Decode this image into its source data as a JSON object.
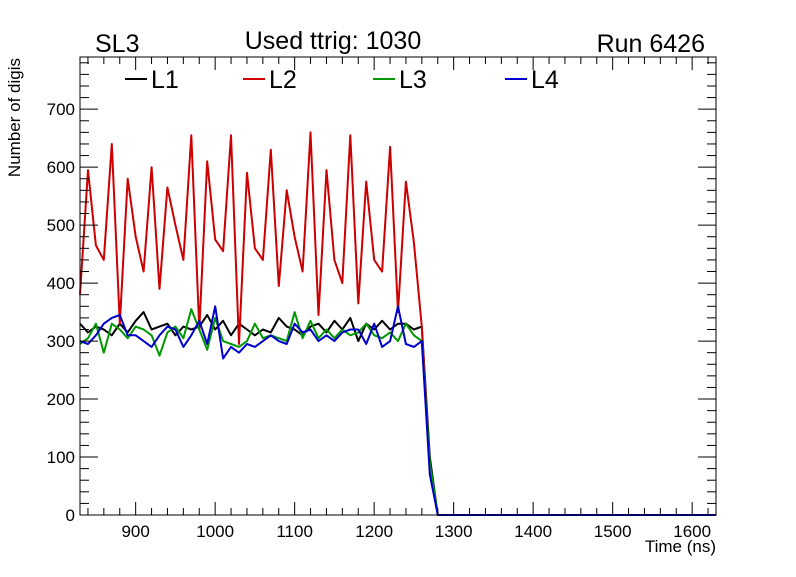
{
  "header": {
    "left": "SL3",
    "center": "Used ttrig: 1030",
    "right": "Run 6426"
  },
  "colors": {
    "L1": "#000000",
    "L2": "#cc0000",
    "L3": "#009900",
    "L4": "#0000cc",
    "frame": "#000000",
    "background": "#ffffff"
  },
  "chart_data": {
    "type": "line",
    "title": "Used ttrig: 1030",
    "xlabel": "Time (ns)",
    "ylabel": "Number of digis",
    "xlim": [
      830,
      1630
    ],
    "ylim": [
      0,
      790
    ],
    "xticks": [
      900,
      1000,
      1100,
      1200,
      1300,
      1400,
      1500,
      1600
    ],
    "yticks": [
      0,
      100,
      200,
      300,
      400,
      500,
      600,
      700
    ],
    "grid": false,
    "legend_position": "top",
    "x": [
      830,
      840,
      850,
      860,
      870,
      880,
      890,
      900,
      910,
      920,
      930,
      940,
      950,
      960,
      970,
      980,
      990,
      1000,
      1010,
      1020,
      1030,
      1040,
      1050,
      1060,
      1070,
      1080,
      1090,
      1100,
      1110,
      1120,
      1130,
      1140,
      1150,
      1160,
      1170,
      1180,
      1190,
      1200,
      1210,
      1220,
      1230,
      1240,
      1250,
      1260,
      1270,
      1280,
      1290,
      1300,
      1310,
      1320,
      1330,
      1340,
      1350,
      1360,
      1370,
      1380,
      1390,
      1400,
      1410,
      1420,
      1430,
      1440,
      1450,
      1460,
      1470,
      1480,
      1490,
      1500,
      1510,
      1520,
      1530,
      1540,
      1550,
      1560,
      1570,
      1580,
      1590,
      1600,
      1610,
      1620,
      1630
    ],
    "series": [
      {
        "name": "L1",
        "values": [
          330,
          315,
          325,
          320,
          310,
          330,
          315,
          335,
          350,
          320,
          325,
          330,
          310,
          325,
          320,
          325,
          345,
          320,
          335,
          310,
          330,
          320,
          310,
          320,
          315,
          340,
          325,
          320,
          310,
          325,
          330,
          315,
          335,
          320,
          340,
          300,
          330,
          320,
          335,
          320,
          330,
          330,
          320,
          325,
          100,
          0,
          0,
          0,
          0,
          0,
          0,
          0,
          0,
          0,
          0,
          0,
          0,
          0,
          0,
          0,
          0,
          0,
          0,
          0,
          0,
          0,
          0,
          0,
          0,
          0,
          0,
          0,
          0,
          0,
          0,
          0,
          0,
          0,
          0,
          0,
          0
        ]
      },
      {
        "name": "L2",
        "values": [
          380,
          595,
          465,
          440,
          640,
          330,
          580,
          480,
          420,
          600,
          390,
          565,
          500,
          440,
          655,
          320,
          610,
          475,
          455,
          655,
          295,
          590,
          460,
          440,
          630,
          395,
          560,
          480,
          420,
          660,
          345,
          595,
          440,
          400,
          655,
          365,
          575,
          440,
          420,
          635,
          350,
          575,
          470,
          325,
          80,
          0,
          0,
          0,
          0,
          0,
          0,
          0,
          0,
          0,
          0,
          0,
          0,
          0,
          0,
          0,
          0,
          0,
          0,
          0,
          0,
          0,
          0,
          0,
          0,
          0,
          0,
          0,
          0,
          0,
          0,
          0,
          0,
          0,
          0,
          0,
          0
        ]
      },
      {
        "name": "L3",
        "values": [
          295,
          305,
          330,
          280,
          330,
          320,
          305,
          325,
          320,
          310,
          275,
          315,
          325,
          305,
          355,
          320,
          285,
          340,
          300,
          295,
          290,
          300,
          330,
          305,
          310,
          305,
          300,
          350,
          305,
          335,
          305,
          320,
          305,
          320,
          310,
          315,
          330,
          310,
          305,
          315,
          300,
          330,
          310,
          300,
          90,
          0,
          0,
          0,
          0,
          0,
          0,
          0,
          0,
          0,
          0,
          0,
          0,
          0,
          0,
          0,
          0,
          0,
          0,
          0,
          0,
          0,
          0,
          0,
          0,
          0,
          0,
          0,
          0,
          0,
          0,
          0,
          0,
          0,
          0,
          0,
          0
        ]
      },
      {
        "name": "L4",
        "values": [
          300,
          295,
          310,
          330,
          340,
          345,
          310,
          310,
          300,
          290,
          310,
          325,
          320,
          290,
          310,
          335,
          295,
          360,
          270,
          290,
          280,
          295,
          290,
          300,
          310,
          300,
          295,
          330,
          315,
          320,
          300,
          310,
          300,
          315,
          320,
          320,
          295,
          330,
          290,
          300,
          360,
          295,
          290,
          300,
          70,
          0,
          0,
          0,
          0,
          0,
          0,
          0,
          0,
          0,
          0,
          0,
          0,
          0,
          0,
          0,
          0,
          0,
          0,
          0,
          0,
          0,
          0,
          0,
          0,
          0,
          0,
          0,
          0,
          0,
          0,
          0,
          0,
          0,
          0,
          0,
          0
        ]
      }
    ]
  }
}
